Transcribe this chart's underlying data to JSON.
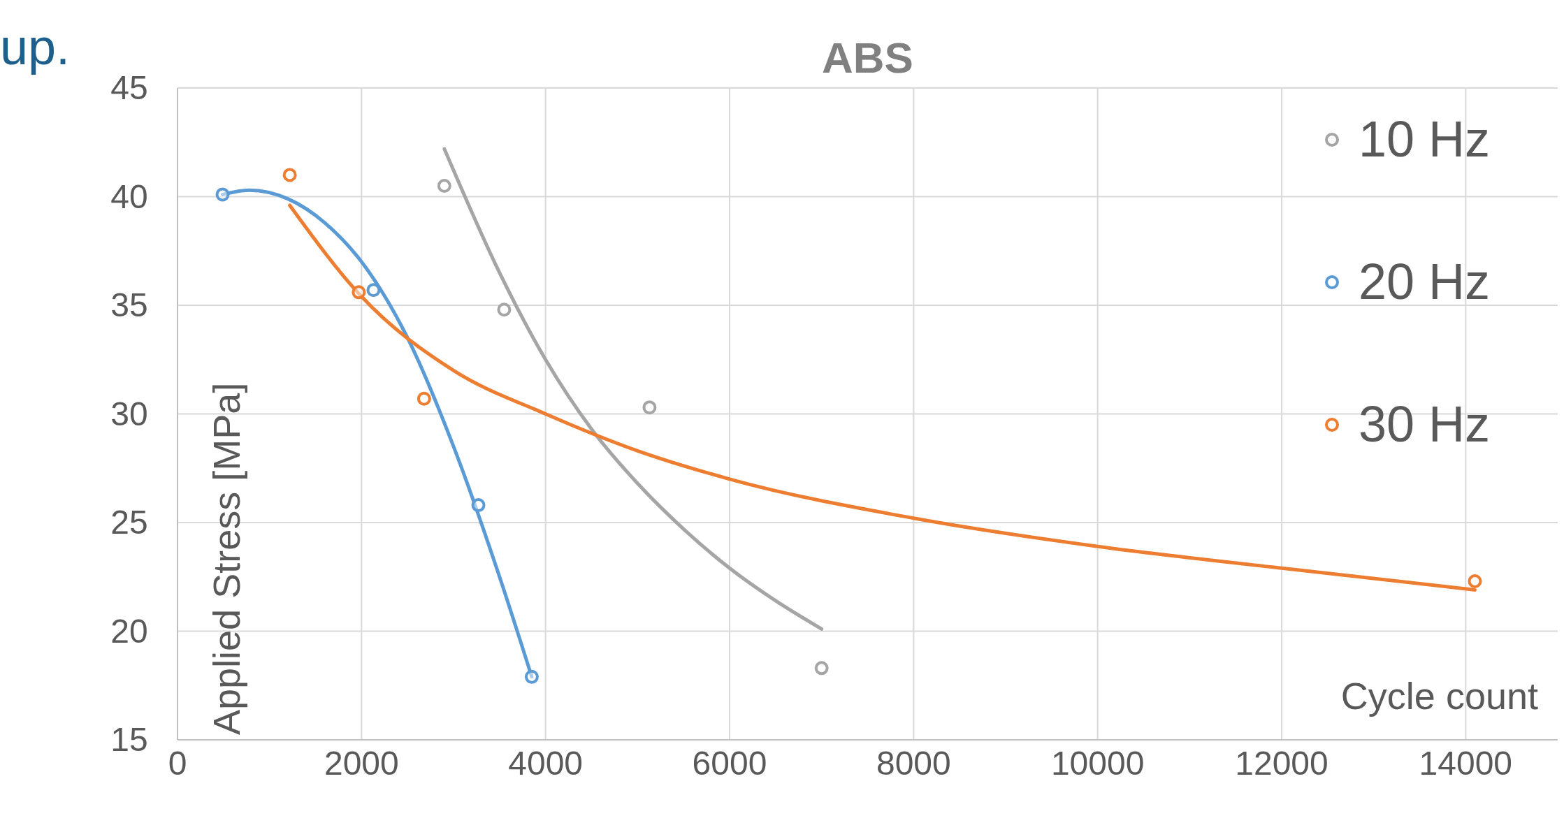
{
  "chart_data": {
    "type": "scatter",
    "title": "ABS",
    "xlabel": "Cycle count",
    "ylabel": "Applied Stress [MPa]",
    "annotations": [
      "up."
    ],
    "xlim": [
      0,
      15000
    ],
    "xticks": [
      0,
      2000,
      4000,
      6000,
      8000,
      10000,
      12000,
      14000
    ],
    "ylim": [
      15,
      45
    ],
    "yticks": [
      15,
      20,
      25,
      30,
      35,
      40,
      45
    ],
    "grid": true,
    "legend": "top right",
    "marker": "circle",
    "line_style": "solid",
    "series": [
      {
        "name": "10 Hz",
        "color": "#a5a5a5",
        "x": [
          2900,
          3550,
          5130,
          7000
        ],
        "values": [
          40.5,
          34.8,
          30.3,
          18.3
        ]
      },
      {
        "name": "20 Hz",
        "color": "#5b9bd5",
        "x": [
          490,
          2130,
          3270,
          3850
        ],
        "values": [
          40.1,
          35.7,
          25.8,
          17.9
        ]
      },
      {
        "name": "30 Hz",
        "color": "#ed7d31",
        "x": [
          1220,
          1970,
          2680,
          14100
        ],
        "values": [
          41,
          35.6,
          30.7,
          22.3
        ]
      },
      {
        "type": "line",
        "marker": "none",
        "color": "#a5a5a5",
        "x": [
          2900,
          3500,
          4000,
          4500,
          5000,
          5500,
          6000,
          6500,
          7000
        ],
        "values": [
          42.2,
          36.5,
          32.5,
          29.3,
          26.8,
          24.7,
          22.9,
          21.4,
          20.1
        ]
      },
      {
        "type": "line",
        "marker": "none",
        "color": "#5b9bd5",
        "x": [
          490,
          780,
          1200,
          1600,
          2000,
          2500,
          3000,
          3500,
          3850
        ],
        "values": [
          40.1,
          40.3,
          39.9,
          38.8,
          37,
          33.5,
          28.5,
          22.5,
          17.9
        ]
      },
      {
        "type": "line",
        "marker": "none",
        "color": "#ed7d31",
        "x": [
          1220,
          2000,
          3000,
          4000,
          5000,
          6000,
          8000,
          10000,
          12000,
          14100
        ],
        "values": [
          39.6,
          35.4,
          32,
          30,
          28.3,
          27,
          25.2,
          23.9,
          22.9,
          21.9
        ]
      }
    ]
  }
}
